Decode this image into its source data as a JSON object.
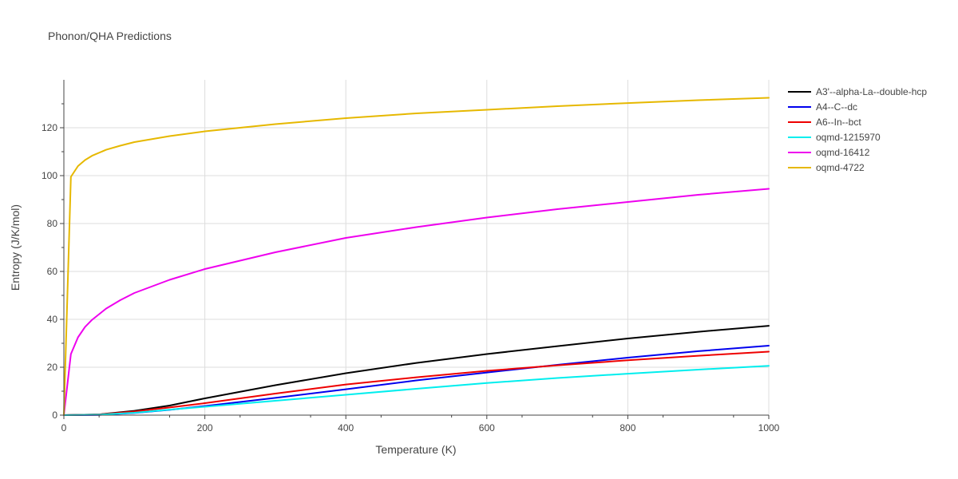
{
  "chart_data": {
    "type": "line",
    "title": "Phonon/QHA Predictions",
    "xlabel": "Temperature (K)",
    "ylabel": "Entropy (J/K/mol)",
    "xlim": [
      0,
      1000
    ],
    "ylim": [
      0,
      140
    ],
    "x_ticks": [
      0,
      200,
      400,
      600,
      800,
      1000
    ],
    "y_ticks": [
      0,
      20,
      40,
      60,
      80,
      100,
      120
    ],
    "grid": true,
    "legend_position": "right",
    "series": [
      {
        "name": "A3'--alpha-La--double-hcp",
        "color": "#000000",
        "x": [
          0,
          50,
          100,
          150,
          200,
          300,
          400,
          500,
          600,
          700,
          800,
          900,
          1000
        ],
        "y": [
          0,
          0.3,
          1.8,
          4.0,
          7.0,
          12.5,
          17.5,
          21.8,
          25.5,
          28.8,
          32.0,
          34.8,
          37.3
        ]
      },
      {
        "name": "A4--C--dc",
        "color": "#0000ee",
        "x": [
          0,
          50,
          100,
          150,
          200,
          300,
          400,
          500,
          600,
          700,
          800,
          900,
          1000
        ],
        "y": [
          0,
          0.1,
          0.9,
          2.2,
          3.8,
          7.2,
          10.8,
          14.5,
          17.8,
          21.0,
          24.0,
          26.7,
          29.0
        ]
      },
      {
        "name": "A6--In--bct",
        "color": "#ee0000",
        "x": [
          0,
          50,
          100,
          150,
          200,
          300,
          400,
          500,
          600,
          700,
          800,
          900,
          1000
        ],
        "y": [
          0,
          0.3,
          1.5,
          3.2,
          5.0,
          9.0,
          12.8,
          15.8,
          18.5,
          20.8,
          22.9,
          24.8,
          26.5
        ]
      },
      {
        "name": "oqmd-1215970",
        "color": "#00eeee",
        "x": [
          0,
          50,
          100,
          150,
          200,
          300,
          400,
          500,
          600,
          700,
          800,
          900,
          1000
        ],
        "y": [
          0,
          0.2,
          1.0,
          2.3,
          3.5,
          6.0,
          8.5,
          11.0,
          13.4,
          15.5,
          17.3,
          19.0,
          20.6
        ]
      },
      {
        "name": "oqmd-16412",
        "color": "#ee00ee",
        "x": [
          0,
          10,
          20,
          30,
          40,
          60,
          80,
          100,
          150,
          200,
          300,
          400,
          500,
          600,
          700,
          800,
          900,
          1000
        ],
        "y": [
          0,
          25.5,
          32.5,
          36.8,
          39.8,
          44.5,
          48.0,
          51.0,
          56.5,
          61.0,
          68.0,
          74.0,
          78.5,
          82.5,
          86.0,
          89.0,
          92.0,
          94.5
        ]
      },
      {
        "name": "oqmd-4722",
        "color": "#e6b800",
        "x": [
          0,
          10,
          20,
          30,
          40,
          60,
          80,
          100,
          150,
          200,
          300,
          400,
          500,
          600,
          700,
          800,
          900,
          1000
        ],
        "y": [
          0,
          99.5,
          104.0,
          106.5,
          108.3,
          110.8,
          112.5,
          114.0,
          116.5,
          118.5,
          121.5,
          124.0,
          126.0,
          127.5,
          129.0,
          130.3,
          131.5,
          132.5
        ]
      }
    ]
  }
}
